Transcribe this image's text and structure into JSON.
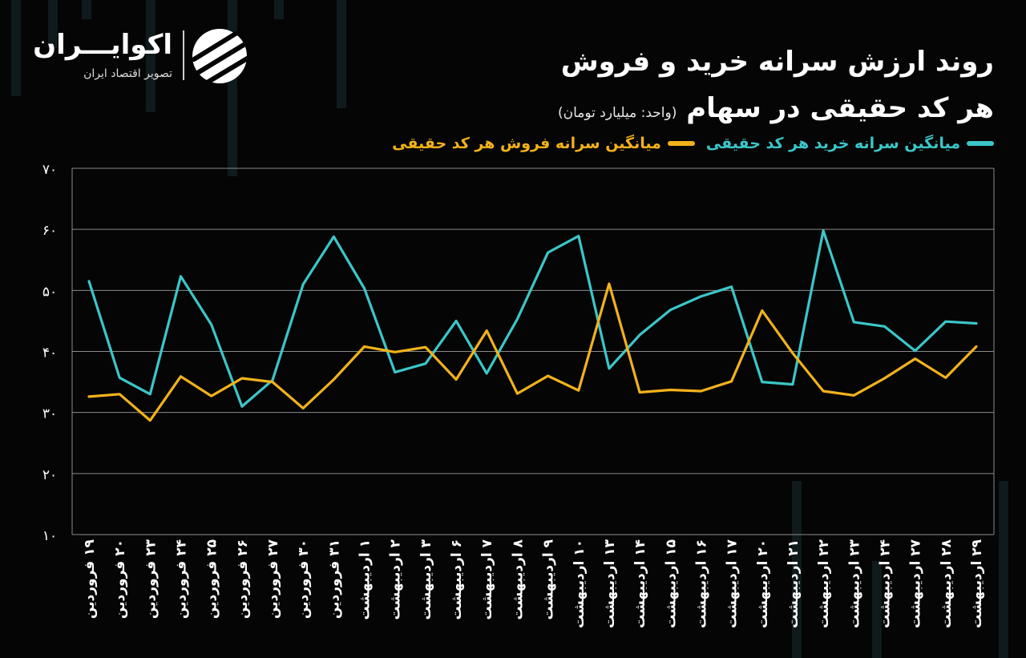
{
  "brand": {
    "name": "اکوایـــران",
    "tagline": "تصویر اقتصاد ایران"
  },
  "colors": {
    "buy": "#3cc6c9",
    "sell": "#f2b21b",
    "grid": "#8a8a8a",
    "background": "#050505"
  },
  "chart_data": {
    "type": "line",
    "title_line1": "روند ارزش سرانه خرید و فروش",
    "title_line2": "هر کد حقیقی در سهام",
    "unit": "(واحد: میلیارد تومان)",
    "ylim": [
      10,
      70
    ],
    "yticks": [
      10,
      20,
      30,
      40,
      50,
      60,
      70
    ],
    "ytick_labels": [
      "۱۰",
      "۲۰",
      "۳۰",
      "۴۰",
      "۵۰",
      "۶۰",
      "۷۰"
    ],
    "grid": true,
    "legend_position": "top-right",
    "categories": [
      "۱۹ فروردین",
      "۲۰ فروردین",
      "۲۳ فروردین",
      "۲۴ فروردین",
      "۲۵ فروردین",
      "۲۶ فروردین",
      "۲۷ فروردین",
      "۳۰ فروردین",
      "۳۱ فروردین",
      "۱ اردیبهشت",
      "۲ اردیبهشت",
      "۳ اردیبهشت",
      "۶ اردیبهشت",
      "۷ اردیبهشت",
      "۸ اردیبهشت",
      "۹ اردیبهشت",
      "۱۰ اردیبهشت",
      "۱۳ اردیبهشت",
      "۱۴ اردیبهشت",
      "۱۵ اردیبهشت",
      "۱۶ اردیبهشت",
      "۱۷ اردیبهشت",
      "۲۰ اردیبهشت",
      "۲۱ اردیبهشت",
      "۲۲ اردیبهشت",
      "۲۳ اردیبهشت",
      "۲۴ اردیبهشت",
      "۲۷ اردیبهشت",
      "۲۸ اردیبهشت",
      "۲۹ اردیبهشت"
    ],
    "series": [
      {
        "name": "میانگین سرانه خرید هر کد حقیقی",
        "color": "#3cc6c9",
        "values": [
          51.5,
          35.7,
          33.0,
          52.3,
          44.4,
          31.0,
          35.3,
          51.0,
          58.8,
          50.3,
          36.6,
          38.0,
          45.0,
          36.4,
          45.3,
          56.2,
          58.9,
          37.2,
          42.7,
          46.8,
          49.0,
          50.6,
          35.0,
          34.6,
          59.8,
          44.8,
          44.1,
          40.1,
          44.9,
          44.6
        ]
      },
      {
        "name": "میانگین سرانه فروش هر کد حقیقی",
        "color": "#f2b21b",
        "values": [
          32.6,
          33.0,
          28.7,
          35.9,
          32.7,
          35.6,
          35.0,
          30.7,
          35.4,
          40.8,
          39.9,
          40.7,
          35.4,
          43.4,
          33.1,
          36.0,
          33.6,
          51.1,
          33.3,
          33.7,
          33.5,
          35.1,
          46.7,
          39.7,
          33.5,
          32.8,
          35.6,
          38.8,
          35.7,
          40.8
        ]
      }
    ]
  }
}
